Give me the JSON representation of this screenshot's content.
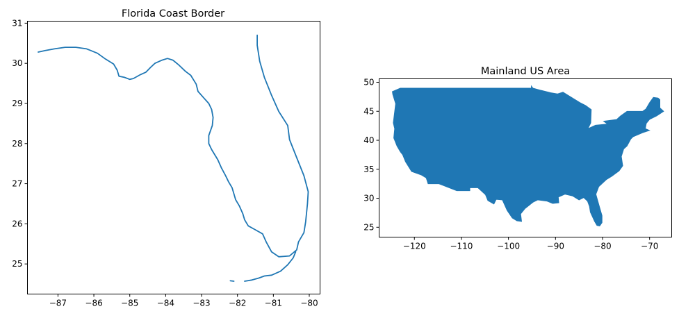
{
  "figure": {
    "panels": [
      {
        "title": "Florida Coast Border",
        "type": "line",
        "color": "#1f77b4",
        "xlim": [
          -87.85,
          -79.7
        ],
        "ylim": [
          24.25,
          31.05
        ],
        "xticks": [
          -87,
          -86,
          -85,
          -84,
          -83,
          -82,
          -81,
          -80
        ],
        "yticks": [
          25,
          26,
          27,
          28,
          29,
          30,
          31
        ],
        "series": [
          {
            "points": [
              [
                -87.55,
                30.28
              ],
              [
                -87.35,
                30.32
              ],
              [
                -87.1,
                30.36
              ],
              [
                -86.8,
                30.4
              ],
              [
                -86.5,
                30.4
              ],
              [
                -86.2,
                30.36
              ],
              [
                -85.9,
                30.25
              ],
              [
                -85.7,
                30.12
              ],
              [
                -85.45,
                29.98
              ],
              [
                -85.35,
                29.83
              ],
              [
                -85.3,
                29.68
              ],
              [
                -85.15,
                29.65
              ],
              [
                -85.0,
                29.6
              ],
              [
                -84.9,
                29.62
              ],
              [
                -84.7,
                29.72
              ],
              [
                -84.55,
                29.78
              ],
              [
                -84.42,
                29.9
              ],
              [
                -84.3,
                30.0
              ],
              [
                -84.1,
                30.08
              ],
              [
                -83.95,
                30.12
              ],
              [
                -83.8,
                30.08
              ],
              [
                -83.65,
                29.97
              ],
              [
                -83.45,
                29.8
              ],
              [
                -83.3,
                29.7
              ],
              [
                -83.15,
                29.48
              ],
              [
                -83.1,
                29.3
              ],
              [
                -82.95,
                29.15
              ],
              [
                -82.8,
                29.0
              ],
              [
                -82.72,
                28.85
              ],
              [
                -82.68,
                28.65
              ],
              [
                -82.7,
                28.45
              ],
              [
                -82.8,
                28.2
              ],
              [
                -82.8,
                28.0
              ],
              [
                -82.72,
                27.85
              ],
              [
                -82.63,
                27.72
              ],
              [
                -82.55,
                27.6
              ],
              [
                -82.45,
                27.4
              ],
              [
                -82.33,
                27.2
              ],
              [
                -82.25,
                27.05
              ],
              [
                -82.15,
                26.9
              ],
              [
                -82.1,
                26.75
              ],
              [
                -82.05,
                26.6
              ],
              [
                -81.95,
                26.45
              ],
              [
                -81.85,
                26.25
              ],
              [
                -81.8,
                26.1
              ],
              [
                -81.7,
                25.95
              ],
              [
                -81.5,
                25.85
              ],
              [
                -81.3,
                25.75
              ],
              [
                -81.2,
                25.55
              ],
              [
                -81.05,
                25.3
              ],
              [
                -80.85,
                25.18
              ],
              [
                -80.55,
                25.2
              ],
              [
                -80.35,
                25.35
              ],
              [
                -80.3,
                25.55
              ],
              [
                -80.15,
                25.78
              ],
              [
                -80.1,
                26.05
              ],
              [
                -80.05,
                26.5
              ],
              [
                -80.03,
                26.8
              ],
              [
                -80.15,
                27.2
              ],
              [
                -80.35,
                27.65
              ],
              [
                -80.55,
                28.1
              ],
              [
                -80.6,
                28.45
              ],
              [
                -80.85,
                28.8
              ],
              [
                -81.05,
                29.2
              ],
              [
                -81.25,
                29.65
              ],
              [
                -81.38,
                30.05
              ],
              [
                -81.45,
                30.45
              ],
              [
                -81.45,
                30.7
              ]
            ]
          },
          {
            "points": [
              [
                -81.8,
                24.57
              ],
              [
                -81.6,
                24.6
              ],
              [
                -81.4,
                24.65
              ],
              [
                -81.25,
                24.7
              ],
              [
                -81.05,
                24.72
              ],
              [
                -80.8,
                24.82
              ],
              [
                -80.6,
                24.98
              ],
              [
                -80.45,
                25.15
              ],
              [
                -80.38,
                25.3
              ]
            ]
          },
          {
            "points": [
              [
                -82.2,
                24.58
              ],
              [
                -82.1,
                24.57
              ]
            ]
          }
        ]
      },
      {
        "title": "Mainland US Area",
        "type": "area",
        "color": "#1f77b4",
        "xlim": [
          -127.5,
          -65.3
        ],
        "ylim": [
          23.3,
          50.6
        ],
        "xticks": [
          -120,
          -110,
          -100,
          -90,
          -80,
          -70
        ],
        "yticks": [
          25,
          30,
          35,
          40,
          45,
          50
        ],
        "series": [
          {
            "points": [
              [
                -124.7,
                48.4
              ],
              [
                -123.0,
                49.0
              ],
              [
                -95.15,
                49.0
              ],
              [
                -95.15,
                49.38
              ],
              [
                -94.8,
                49.0
              ],
              [
                -93.0,
                48.6
              ],
              [
                -91.0,
                48.2
              ],
              [
                -89.6,
                48.0
              ],
              [
                -88.4,
                48.3
              ],
              [
                -84.8,
                46.5
              ],
              [
                -83.6,
                46.0
              ],
              [
                -82.4,
                45.3
              ],
              [
                -82.5,
                43.0
              ],
              [
                -83.1,
                42.0
              ],
              [
                -81.5,
                42.6
              ],
              [
                -79.0,
                42.8
              ],
              [
                -79.8,
                43.3
              ],
              [
                -77.0,
                43.6
              ],
              [
                -76.2,
                44.2
              ],
              [
                -74.8,
                45.0
              ],
              [
                -71.5,
                45.0
              ],
              [
                -70.8,
                45.4
              ],
              [
                -70.0,
                46.5
              ],
              [
                -69.2,
                47.4
              ],
              [
                -68.2,
                47.3
              ],
              [
                -67.8,
                47.0
              ],
              [
                -67.8,
                45.6
              ],
              [
                -67.0,
                45.0
              ],
              [
                -68.5,
                44.2
              ],
              [
                -70.0,
                43.6
              ],
              [
                -70.7,
                42.9
              ],
              [
                -70.9,
                42.0
              ],
              [
                -70.0,
                41.7
              ],
              [
                -71.5,
                41.3
              ],
              [
                -73.5,
                40.6
              ],
              [
                -74.0,
                40.2
              ],
              [
                -74.8,
                39.0
              ],
              [
                -75.5,
                38.5
              ],
              [
                -76.0,
                37.2
              ],
              [
                -75.7,
                35.6
              ],
              [
                -76.5,
                34.7
              ],
              [
                -78.0,
                33.8
              ],
              [
                -79.2,
                33.2
              ],
              [
                -80.8,
                32.0
              ],
              [
                -81.4,
                30.7
              ],
              [
                -80.6,
                28.4
              ],
              [
                -80.1,
                27.0
              ],
              [
                -80.1,
                25.8
              ],
              [
                -80.6,
                25.2
              ],
              [
                -81.2,
                25.3
              ],
              [
                -81.7,
                26.0
              ],
              [
                -82.6,
                27.6
              ],
              [
                -82.8,
                28.6
              ],
              [
                -83.2,
                29.5
              ],
              [
                -84.0,
                30.1
              ],
              [
                -85.0,
                29.7
              ],
              [
                -86.4,
                30.4
              ],
              [
                -88.0,
                30.7
              ],
              [
                -89.4,
                30.2
              ],
              [
                -89.3,
                29.2
              ],
              [
                -90.6,
                29.1
              ],
              [
                -91.8,
                29.5
              ],
              [
                -93.8,
                29.7
              ],
              [
                -94.8,
                29.3
              ],
              [
                -96.5,
                28.2
              ],
              [
                -97.4,
                27.3
              ],
              [
                -97.2,
                26.0
              ],
              [
                -98.2,
                26.1
              ],
              [
                -99.2,
                26.6
              ],
              [
                -100.3,
                27.9
              ],
              [
                -101.3,
                29.7
              ],
              [
                -102.6,
                29.8
              ],
              [
                -103.1,
                29.0
              ],
              [
                -104.4,
                29.6
              ],
              [
                -104.9,
                30.6
              ],
              [
                -106.5,
                31.8
              ],
              [
                -108.2,
                31.8
              ],
              [
                -108.2,
                31.3
              ],
              [
                -111.0,
                31.3
              ],
              [
                -114.8,
                32.5
              ],
              [
                -117.1,
                32.5
              ],
              [
                -117.5,
                33.5
              ],
              [
                -118.5,
                34.0
              ],
              [
                -120.6,
                34.6
              ],
              [
                -121.9,
                36.3
              ],
              [
                -122.5,
                37.5
              ],
              [
                -123.0,
                38.0
              ],
              [
                -123.7,
                39.0
              ],
              [
                -124.4,
                40.4
              ],
              [
                -124.2,
                42.0
              ],
              [
                -124.5,
                43.0
              ],
              [
                -124.0,
                46.3
              ],
              [
                -124.6,
                47.9
              ]
            ]
          }
        ]
      }
    ]
  }
}
